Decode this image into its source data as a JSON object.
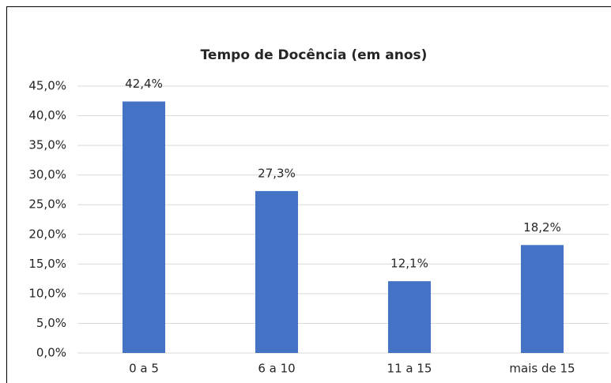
{
  "chart_data": {
    "type": "bar",
    "title": "Tempo de Docência (em anos)",
    "categories": [
      "0 a 5",
      "6 a 10",
      "11 a 15",
      "mais de 15"
    ],
    "values": [
      42.4,
      27.3,
      12.1,
      18.2
    ],
    "value_labels": [
      "42,4%",
      "27,3%",
      "12,1%",
      "18,2%"
    ],
    "color": "#4472c4",
    "ylim": [
      0,
      45
    ],
    "yticks": [
      {
        "value": 0,
        "label": "0,0%"
      },
      {
        "value": 5,
        "label": "5,0%"
      },
      {
        "value": 10,
        "label": "10,0%"
      },
      {
        "value": 15,
        "label": "15,0%"
      },
      {
        "value": 20,
        "label": "20,0%"
      },
      {
        "value": 25,
        "label": "25,0%"
      },
      {
        "value": 30,
        "label": "30,0%"
      },
      {
        "value": 35,
        "label": "35,0%"
      },
      {
        "value": 40,
        "label": "40,0%"
      },
      {
        "value": 45,
        "label": "45,0%"
      }
    ],
    "grid": true
  }
}
